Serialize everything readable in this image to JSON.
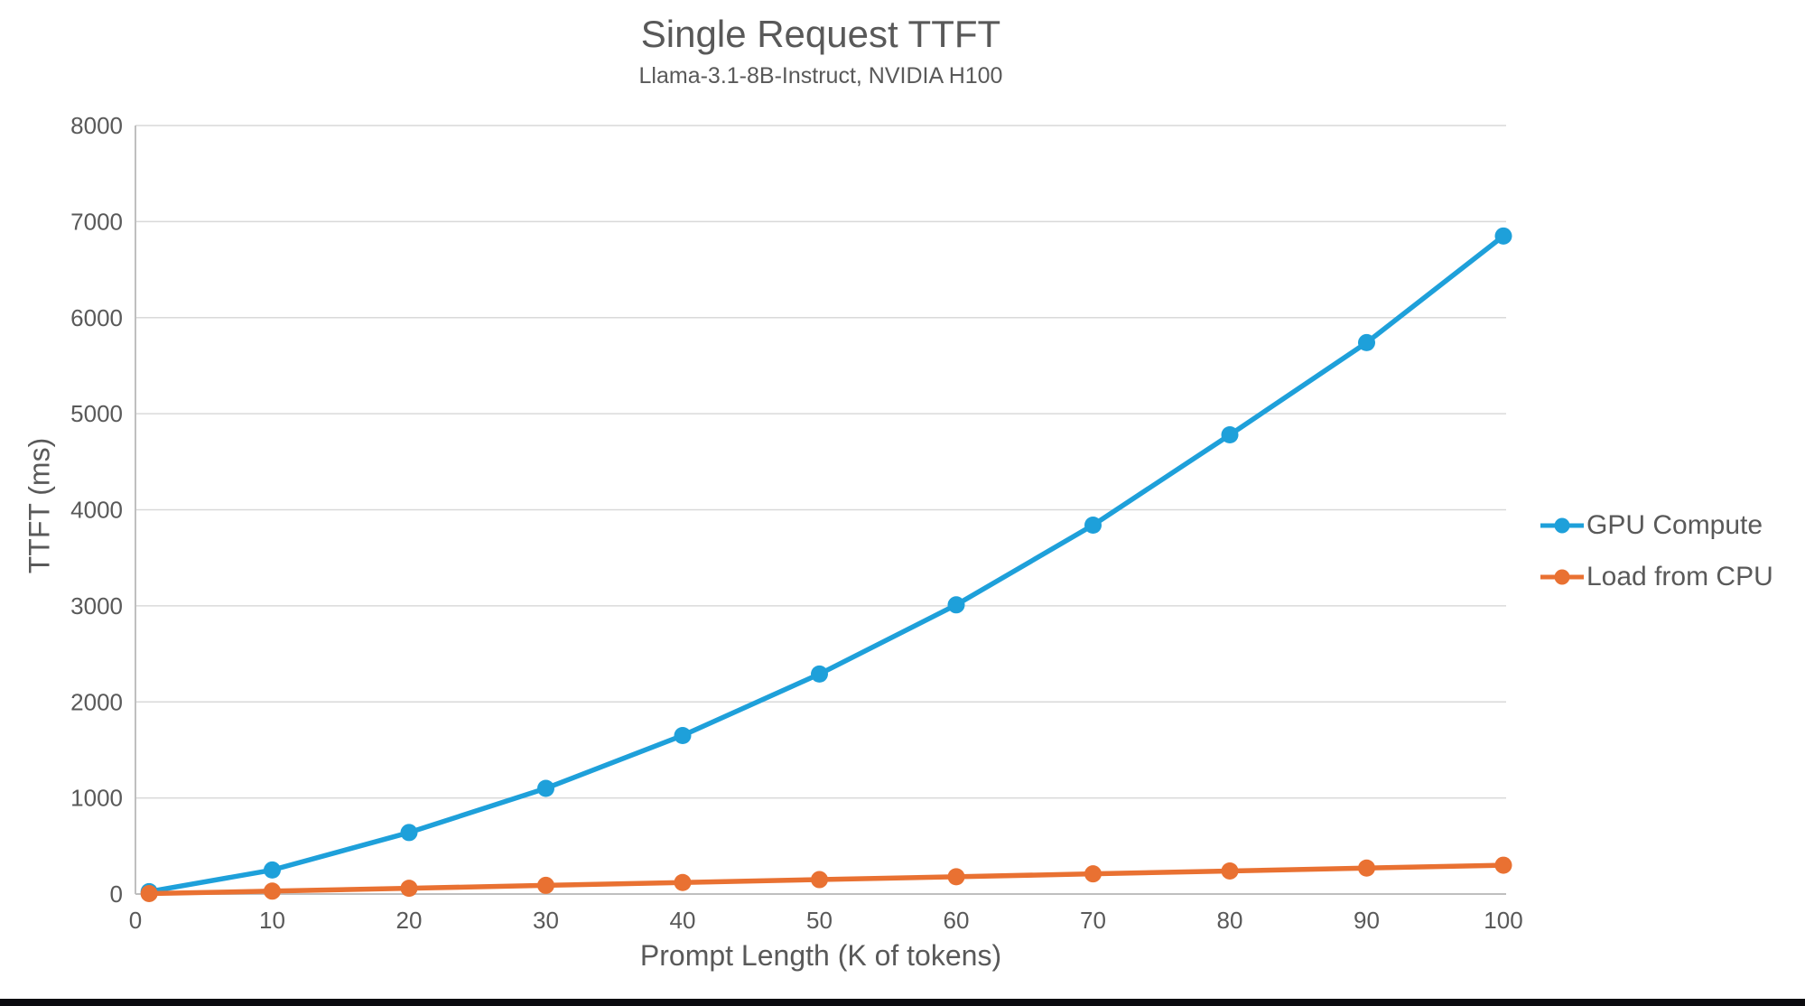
{
  "chart_data": {
    "type": "line",
    "title": "Single Request TTFT",
    "subtitle": "Llama-3.1-8B-Instruct, NVIDIA H100",
    "xlabel": "Prompt Length (K of tokens)",
    "ylabel": "TTFT (ms)",
    "xlim": [
      0,
      100
    ],
    "ylim": [
      0,
      8000
    ],
    "x_ticks": [
      0,
      10,
      20,
      30,
      40,
      50,
      60,
      70,
      80,
      90,
      100
    ],
    "y_ticks": [
      0,
      1000,
      2000,
      3000,
      4000,
      5000,
      6000,
      7000,
      8000
    ],
    "grid": "horizontal",
    "legend_position": "right",
    "x": [
      1,
      10,
      20,
      30,
      40,
      50,
      60,
      70,
      80,
      90,
      100
    ],
    "series": [
      {
        "name": "GPU Compute",
        "color": "#1EA0DA",
        "values": [
          25,
          250,
          640,
          1100,
          1650,
          2290,
          3010,
          3840,
          4780,
          5740,
          6850
        ]
      },
      {
        "name": "Load from CPU",
        "color": "#E97132",
        "values": [
          5,
          30,
          60,
          90,
          120,
          150,
          180,
          210,
          240,
          270,
          300
        ]
      }
    ],
    "colors": {
      "text": "#595959",
      "gridline": "#D9D9D9",
      "axis_line": "#BFBFBF",
      "bottom_bar": "#0b0b0f"
    }
  }
}
